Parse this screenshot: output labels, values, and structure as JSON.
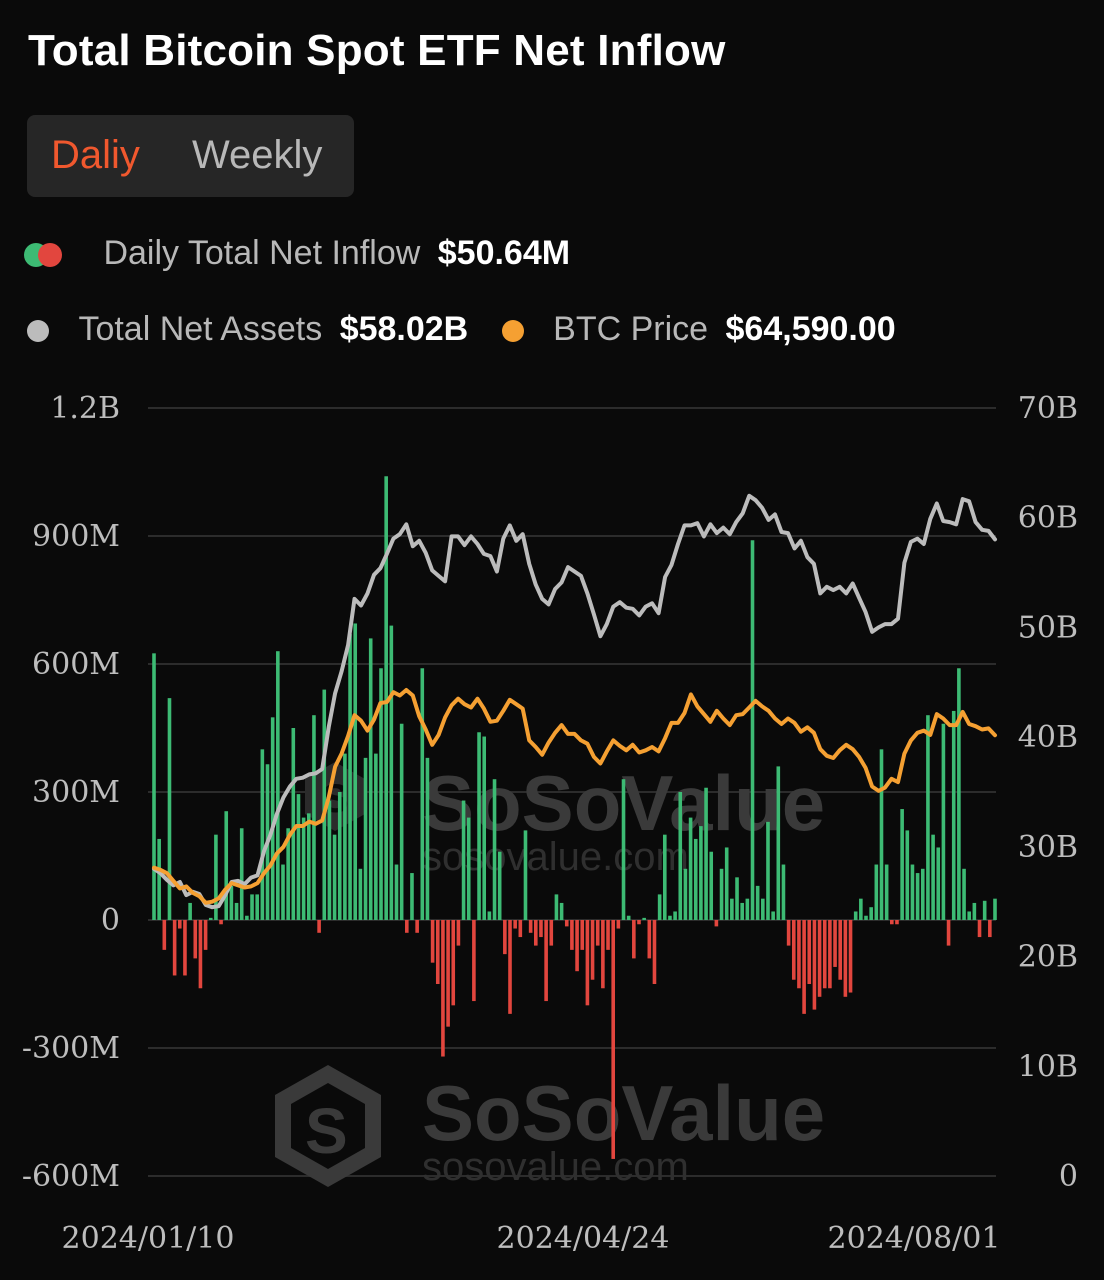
{
  "header": {
    "title": "Total Bitcoin Spot ETF Net Inflow",
    "tab_daily": "Daliy",
    "tab_weekly": "Weekly"
  },
  "legend": {
    "inflow_label": "Daily Total Net Inflow",
    "inflow_value": "$50.64M",
    "assets_label": "Total Net Assets",
    "assets_value": "$58.02B",
    "price_label": "BTC Price",
    "price_value": "$64,590.00"
  },
  "watermark": {
    "brand": "SoSoValue",
    "url": "sosovalue.com"
  },
  "colors": {
    "inflow_positive": "#3dbb74",
    "inflow_negative": "#e2463e",
    "assets_line": "#bcbcbc",
    "price_line": "#f5a032",
    "active_tab": "#f0582e"
  },
  "chart_data": {
    "type": "bar",
    "left_axis": {
      "ticks": [
        "1.2B",
        "900M",
        "600M",
        "300M",
        "0",
        "-300M",
        "-600M"
      ],
      "range": [
        -600,
        1200
      ],
      "unit": "M"
    },
    "right_axis": {
      "ticks": [
        "70B",
        "60B",
        "50B",
        "40B",
        "30B",
        "20B",
        "10B",
        "0"
      ],
      "range": [
        0,
        70
      ],
      "unit": "B"
    },
    "x_ticks": [
      "2024/01/10",
      "2024/04/24",
      "2024/08/01"
    ],
    "grid": true,
    "series": [
      {
        "axis": "left",
        "kind": "bar",
        "values": [
          625,
          190,
          -70,
          520,
          -130,
          -20,
          -130,
          40,
          -90,
          -160,
          -70,
          5,
          200,
          -10,
          255,
          80,
          40,
          215,
          10,
          60,
          60,
          400,
          365,
          475,
          630,
          130,
          215,
          450,
          295,
          240,
          250,
          480,
          -30,
          540,
          280,
          200,
          300,
          390,
          670,
          695,
          120,
          380,
          660,
          390,
          590,
          1040,
          690,
          130,
          460,
          -30,
          110,
          -30,
          590,
          380,
          -100,
          -150,
          -320,
          -250,
          -200,
          -60,
          280,
          240,
          -190,
          440,
          430,
          20,
          330,
          160,
          -80,
          -220,
          -20,
          -40,
          210,
          -30,
          -60,
          -40,
          -190,
          -60,
          60,
          40,
          -15,
          -70,
          -120,
          -70,
          -200,
          -140,
          -60,
          -160,
          -70,
          -560,
          -20,
          330,
          10,
          -90,
          -10,
          5,
          -90,
          -150,
          60,
          200,
          10,
          20,
          300,
          120,
          240,
          190,
          220,
          310,
          160,
          -15,
          120,
          170,
          50,
          100,
          40,
          50,
          890,
          80,
          50,
          230,
          20,
          360,
          130,
          -60,
          -140,
          -160,
          -220,
          -150,
          -210,
          -180,
          -160,
          -160,
          -110,
          -140,
          -180,
          -170,
          20,
          50,
          10,
          30,
          130,
          400,
          130,
          -10,
          -10,
          260,
          210,
          130,
          110,
          120,
          480,
          200,
          170,
          460,
          -60,
          490,
          590,
          120,
          20,
          40,
          -40,
          45,
          -40,
          50
        ],
        "bar_colors": [
          "positive",
          "negative"
        ]
      },
      {
        "axis": "right",
        "kind": "line",
        "name": "Total Net Assets",
        "values": [
          28,
          27.6,
          27,
          26.5,
          26.8,
          25.6,
          25.9,
          25.7,
          24.7,
          24.5,
          24.6,
          25.6,
          26.8,
          26.9,
          26.6,
          27.2,
          27.4,
          29.6,
          31.1,
          33,
          34.5,
          35.5,
          36.2,
          36.3,
          36.6,
          36.7,
          37.1,
          40.9,
          44,
          46,
          48.4,
          52.6,
          52,
          53.1,
          54.8,
          55.4,
          56.7,
          58.1,
          58.5,
          59.4,
          57.4,
          57.9,
          56.8,
          55.2,
          54.7,
          54.2,
          58.3,
          58.3,
          57.5,
          58.3,
          57.6,
          56.7,
          56.5,
          55.1,
          58.1,
          59.3,
          57.9,
          58.5,
          55.8,
          53.9,
          52.6,
          52.1,
          53.5,
          54.1,
          55.5,
          55.1,
          54.7,
          53.1,
          51.2,
          49.2,
          50.3,
          51.9,
          52.3,
          51.8,
          51.7,
          51.1,
          51.9,
          52.2,
          51.3,
          54.6,
          55.7,
          57.6,
          59.3,
          59.3,
          59.5,
          58.3,
          59.4,
          58.6,
          59.1,
          58.5,
          59.6,
          60.4,
          62,
          61.6,
          60.9,
          59.8,
          60.3,
          58.7,
          58.6,
          57.2,
          57.9,
          56.4,
          55.8,
          53.1,
          53.7,
          53.4,
          53.7,
          53.1,
          54,
          52.7,
          51.4,
          49.6,
          50,
          50.3,
          50.3,
          50.8,
          55.9,
          57.8,
          58.1,
          57.6,
          59.9,
          61.3,
          59.7,
          59.6,
          59.4,
          61.7,
          61.5,
          59.6,
          58.9,
          58.8,
          58.02
        ]
      },
      {
        "axis": "right",
        "kind": "line",
        "name": "BTC Price",
        "values": [
          28.1,
          27.9,
          27.6,
          26.9,
          26.2,
          26.4,
          25.8,
          25.5,
          24.9,
          25,
          25.3,
          26.1,
          26.7,
          26.5,
          26.3,
          26.4,
          26.7,
          27.6,
          28.3,
          29.4,
          30,
          31.1,
          31.9,
          31.9,
          32.3,
          32.1,
          32.4,
          34.5,
          37.3,
          38.5,
          40.1,
          42,
          41.5,
          40.6,
          41.6,
          43.1,
          43.2,
          44.1,
          43.8,
          44.3,
          43.8,
          41.9,
          40.7,
          39.3,
          40.2,
          41.8,
          42.9,
          43.5,
          43,
          42.7,
          43.5,
          42.6,
          41.4,
          41.5,
          42.4,
          43.4,
          43,
          42.6,
          39.7,
          39.1,
          38.4,
          39.5,
          40.4,
          41.1,
          40.3,
          40.3,
          39.7,
          39.4,
          38.2,
          37.6,
          38.7,
          39.7,
          39.2,
          38.8,
          39.3,
          38.6,
          38.8,
          39.1,
          38.7,
          39.9,
          41.3,
          41.3,
          42.2,
          43.9,
          42.8,
          42.1,
          41.4,
          42.4,
          41.7,
          41.1,
          42,
          42.1,
          42.7,
          43.3,
          42.8,
          42.4,
          41.7,
          41.2,
          41.7,
          41.3,
          40.5,
          40.9,
          40.4,
          38.9,
          38.3,
          38.1,
          38.8,
          39.3,
          38.9,
          38.2,
          37.2,
          35.5,
          35.1,
          35.4,
          36.2,
          35.9,
          38.5,
          39.7,
          40.4,
          40.6,
          40.2,
          42.1,
          41.7,
          41.1,
          41.1,
          42.3,
          41.2,
          41,
          40.7,
          40.8,
          40.18
        ]
      }
    ]
  }
}
